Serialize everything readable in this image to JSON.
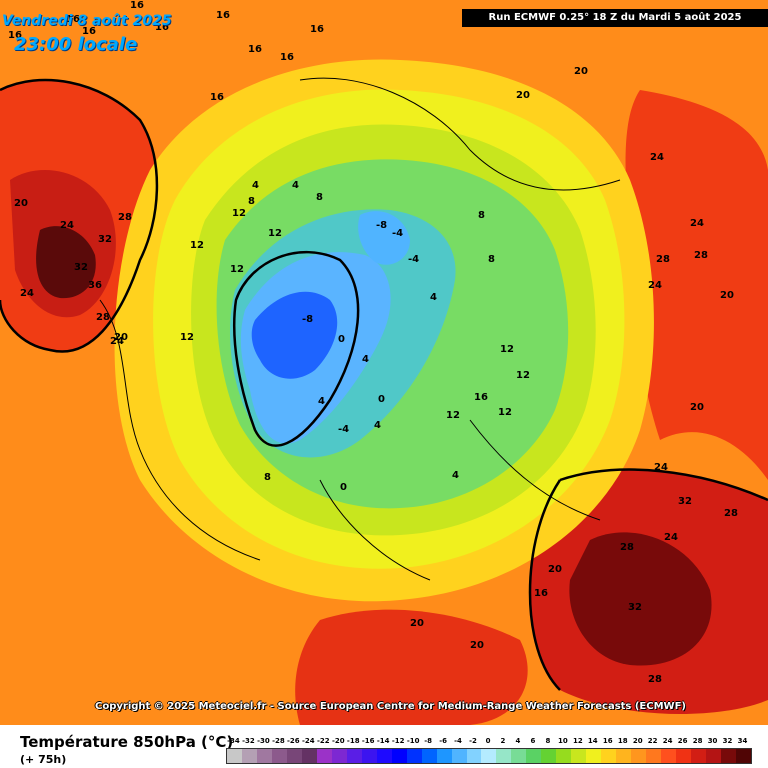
{
  "header": {
    "valid_date": "Vendredi 8 août 2025",
    "valid_time": "23:00 locale",
    "run_info": "Run ECMWF 0.25° 18 Z du Mardi 5 août 2025"
  },
  "footer": {
    "copyright": "Copyright © 2025 Meteociel.fr - Source European Centre for Medium-Range Weather Forecasts (ECMWF)",
    "legend_title": "Température 850hPa (°C)",
    "legend_subtitle": "(+ 75h)"
  },
  "scale": {
    "labels": [
      "-34",
      "-32",
      "-30",
      "-28",
      "-26",
      "-24",
      "-22",
      "-20",
      "-18",
      "-16",
      "-14",
      "-12",
      "-10",
      "-8",
      "-6",
      "-4",
      "-2",
      "0",
      "2",
      "4",
      "6",
      "8",
      "10",
      "12",
      "14",
      "16",
      "18",
      "20",
      "22",
      "24",
      "26",
      "28",
      "30",
      "32",
      "34"
    ],
    "colors": [
      "#c8c8c8",
      "#b4a0b4",
      "#a078a0",
      "#8c5a8c",
      "#784678",
      "#643264",
      "#9b32c8",
      "#7d28d2",
      "#5a1ee6",
      "#3c14f0",
      "#1e0aff",
      "#0000ff",
      "#0032ff",
      "#0064ff",
      "#1e96ff",
      "#50b4ff",
      "#82d2ff",
      "#b4ebff",
      "#96e6c8",
      "#78dc96",
      "#5ad264",
      "#64d232",
      "#96dc1e",
      "#c8e61e",
      "#f0f01e",
      "#ffd21e",
      "#ffb41e",
      "#ff961e",
      "#ff781e",
      "#ff501e",
      "#f03214",
      "#d21e14",
      "#b41414",
      "#780a0a",
      "#500505"
    ]
  },
  "map": {
    "labels": [
      {
        "t": "16"
      },
      {
        "t": "16"
      },
      {
        "t": "16"
      },
      {
        "t": "16"
      },
      {
        "t": "16"
      },
      {
        "t": "16"
      },
      {
        "t": "16"
      },
      {
        "t": "16"
      },
      {
        "t": "16"
      },
      {
        "t": "16"
      },
      {
        "t": "20"
      },
      {
        "t": "24"
      },
      {
        "t": "28"
      },
      {
        "t": "32"
      },
      {
        "t": "32"
      },
      {
        "t": "36"
      },
      {
        "t": "28"
      },
      {
        "t": "24"
      },
      {
        "t": "20"
      },
      {
        "t": "24"
      },
      {
        "t": "12"
      },
      {
        "t": "12"
      },
      {
        "t": "12"
      },
      {
        "t": "12"
      },
      {
        "t": "8"
      },
      {
        "t": "8"
      },
      {
        "t": "4"
      },
      {
        "t": "4"
      },
      {
        "t": "-4"
      },
      {
        "t": "-8"
      },
      {
        "t": "-8"
      },
      {
        "t": "-4"
      },
      {
        "t": "0"
      },
      {
        "t": "0"
      },
      {
        "t": "4"
      },
      {
        "t": "4"
      },
      {
        "t": "8"
      },
      {
        "t": "8"
      },
      {
        "t": "12"
      },
      {
        "t": "12"
      },
      {
        "t": "20"
      },
      {
        "t": "20"
      },
      {
        "t": "24"
      },
      {
        "t": "24"
      },
      {
        "t": "28"
      },
      {
        "t": "28"
      },
      {
        "t": "24"
      },
      {
        "t": "20"
      },
      {
        "t": "20"
      },
      {
        "t": "24"
      },
      {
        "t": "28"
      },
      {
        "t": "32"
      },
      {
        "t": "32"
      },
      {
        "t": "28"
      },
      {
        "t": "24"
      },
      {
        "t": "20"
      },
      {
        "t": "28"
      },
      {
        "t": "20"
      },
      {
        "t": "16"
      },
      {
        "t": "20"
      },
      {
        "t": "4"
      },
      {
        "t": "4"
      },
      {
        "t": "0"
      },
      {
        "t": "-4"
      },
      {
        "t": "4"
      },
      {
        "t": "8"
      },
      {
        "t": "12"
      },
      {
        "t": "12"
      },
      {
        "t": "16"
      },
      {
        "t": "12"
      }
    ]
  }
}
